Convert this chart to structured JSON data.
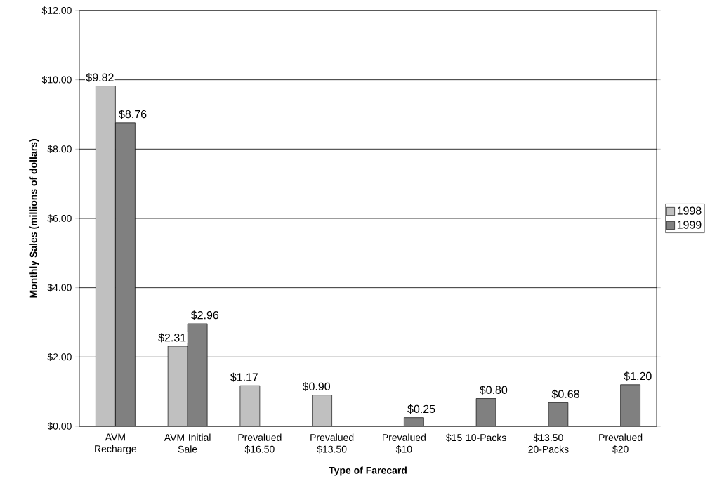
{
  "chart_data": {
    "type": "bar",
    "xlabel": "Type of Farecard",
    "ylabel": "Monthly Sales (millions of dollars)",
    "categories": [
      "AVM Recharge",
      "AVM Initial Sale",
      "Prevalued $16.50",
      "Prevalued $13.50",
      "Prevalued $10",
      "$15 10-Packs",
      "$13.50 20-Packs",
      "Prevalued $20"
    ],
    "series": [
      {
        "name": "1998",
        "color": "#c0c0c0",
        "values": [
          9.82,
          2.31,
          1.17,
          0.9,
          null,
          null,
          null,
          null
        ],
        "value_labels": [
          "$9.82",
          "$2.31",
          "$1.17",
          "$0.90",
          null,
          null,
          null,
          null
        ]
      },
      {
        "name": "1999",
        "color": "#808080",
        "values": [
          8.76,
          2.96,
          null,
          null,
          0.25,
          0.8,
          0.68,
          1.2
        ],
        "value_labels": [
          "$8.76",
          "$2.96",
          null,
          null,
          "$0.25",
          "$0.80",
          "$0.68",
          "$1.20"
        ]
      }
    ],
    "ylim": [
      0,
      12
    ],
    "yticks": [
      {
        "value": 0,
        "label": "$0.00"
      },
      {
        "value": 2,
        "label": "$2.00"
      },
      {
        "value": 4,
        "label": "$4.00"
      },
      {
        "value": 6,
        "label": "$6.00"
      },
      {
        "value": 8,
        "label": "$8.00"
      },
      {
        "value": 10,
        "label": "$10.00"
      },
      {
        "value": 12,
        "label": "$12.00"
      }
    ],
    "grid": "y",
    "legend": "right"
  }
}
